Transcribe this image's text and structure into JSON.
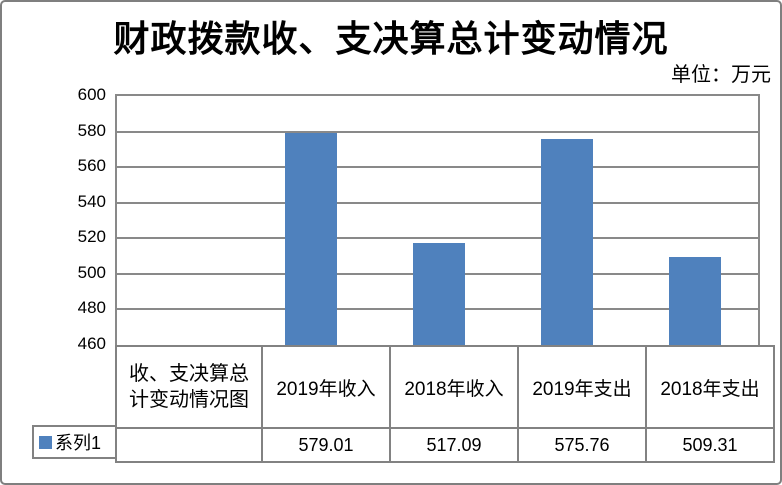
{
  "title": "财政拨款收、支决算总计变动情况",
  "unit_label": "单位：万元",
  "legend": {
    "label": "系列1",
    "marker": "square-icon",
    "color": "#4F81BD"
  },
  "table": {
    "corner_label": "收、支决算总计变动情况图"
  },
  "colors": {
    "bar": "#4F81BD",
    "grid": "#898989",
    "table_border": "#828282",
    "outer_border": "#7F7F7F",
    "text": "#000000"
  },
  "chart_data": {
    "type": "bar",
    "title": "财政拨款收、支决算总计变动情况",
    "subtitle": "单位：万元",
    "categories": [
      "2019年收入",
      "2018年收入",
      "2019年支出",
      "2018年支出"
    ],
    "series": [
      {
        "name": "系列1",
        "values": [
          579.01,
          517.09,
          575.76,
          509.31
        ]
      }
    ],
    "xlabel": "",
    "ylabel": "万元",
    "ylim": [
      460,
      600
    ],
    "yticks": [
      460,
      480,
      500,
      520,
      540,
      560,
      580,
      600
    ],
    "grid": true,
    "bar_color": "#4F81BD",
    "legend_position": "bottom-left",
    "data_table_shown": true
  }
}
